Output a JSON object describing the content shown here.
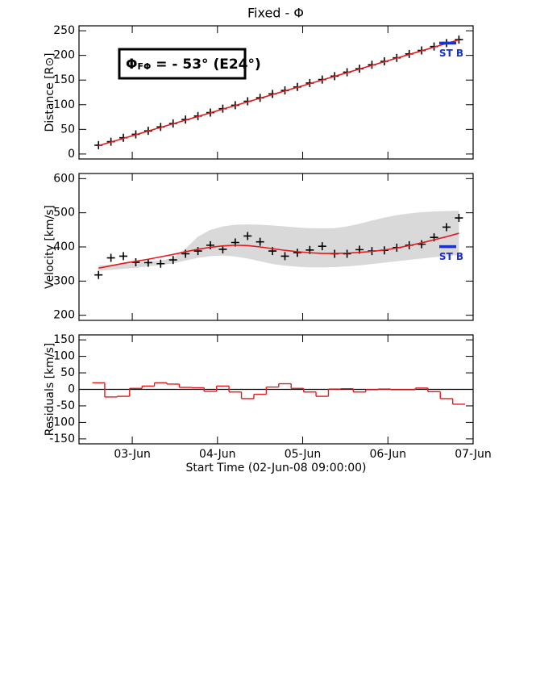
{
  "chart_data": [
    {
      "type": "scatter",
      "title": "Fixed - Φ",
      "ylabel": "Distance [R⊙]",
      "annotation": {
        "symbol": "Φ",
        "subscript": "FΦ",
        "text": " = - 53° (E24°)"
      },
      "x": [
        5.5,
        9,
        12.5,
        16,
        19.5,
        23,
        26.5,
        30,
        33.5,
        37,
        40.5,
        44,
        47.5,
        51,
        54.5,
        58,
        61.5,
        65,
        68.5,
        72,
        75.5,
        79,
        82.5,
        86,
        89.5,
        93,
        96.5,
        100,
        103.5,
        107
      ],
      "xlim": [
        0,
        111
      ],
      "xticks": [
        {
          "value": 15,
          "label": "03-Jun"
        },
        {
          "value": 39,
          "label": "04-Jun"
        },
        {
          "value": 63,
          "label": "05-Jun"
        },
        {
          "value": 87,
          "label": "06-Jun"
        },
        {
          "value": 111,
          "label": "07-Jun"
        }
      ],
      "ylim": [
        -10,
        260
      ],
      "yticks": [
        0,
        50,
        100,
        150,
        200,
        250
      ],
      "series": [
        {
          "kind": "band",
          "color": "#d9d9d9",
          "upper": [],
          "lower": []
        },
        {
          "kind": "points",
          "color": "#000000",
          "values": [
            18,
            25,
            33,
            40,
            47,
            55,
            62,
            70,
            77,
            84,
            92,
            99,
            107,
            114,
            122,
            129,
            136,
            144,
            151,
            158,
            166,
            173,
            181,
            188,
            195,
            203,
            210,
            218,
            225,
            232
          ]
        },
        {
          "kind": "line",
          "color": "#e41a1c",
          "values": [
            17,
            24.4,
            31.8,
            39.2,
            46.6,
            54,
            61.4,
            68.8,
            76.2,
            83.6,
            91,
            98.4,
            105.8,
            113.2,
            120.6,
            128,
            135.4,
            142.8,
            150.2,
            157.6,
            165,
            172.4,
            179.8,
            187.2,
            194.6,
            202,
            209.4,
            216.8,
            224.2,
            231.6
          ]
        }
      ],
      "marker": {
        "label": "ST B",
        "value": 225,
        "color": "#1a2fd0"
      }
    },
    {
      "type": "scatter",
      "ylabel": "Velocity [km/s]",
      "x": [
        5.5,
        9,
        12.5,
        16,
        19.5,
        23,
        26.5,
        30,
        33.5,
        37,
        40.5,
        44,
        47.5,
        51,
        54.5,
        58,
        61.5,
        65,
        68.5,
        72,
        75.5,
        79,
        82.5,
        86,
        89.5,
        93,
        96.5,
        100,
        103.5,
        107
      ],
      "xlim": [
        0,
        111
      ],
      "xticks": [
        {
          "value": 15,
          "label": "03-Jun"
        },
        {
          "value": 39,
          "label": "04-Jun"
        },
        {
          "value": 63,
          "label": "05-Jun"
        },
        {
          "value": 87,
          "label": "06-Jun"
        },
        {
          "value": 111,
          "label": "07-Jun"
        }
      ],
      "ylim": [
        185,
        615
      ],
      "yticks": [
        200,
        300,
        400,
        500,
        600
      ],
      "series": [
        {
          "kind": "band",
          "color": "#d9d9d9",
          "upper": [
            345,
            348,
            351,
            354,
            357,
            360,
            368,
            395,
            430,
            450,
            460,
            465,
            466,
            465,
            463,
            460,
            457,
            455,
            454,
            455,
            460,
            468,
            477,
            486,
            493,
            498,
            502,
            504,
            505,
            506
          ],
          "lower": [
            330,
            333,
            336,
            339,
            343,
            347,
            352,
            360,
            368,
            373,
            375,
            372,
            366,
            358,
            350,
            345,
            342,
            340,
            340,
            341,
            343,
            346,
            350,
            354,
            358,
            362,
            366,
            370,
            373,
            376
          ]
        },
        {
          "kind": "points",
          "color": "#000000",
          "values": [
            318,
            368,
            373,
            355,
            354,
            351,
            362,
            380,
            388,
            405,
            393,
            413,
            432,
            415,
            388,
            373,
            383,
            391,
            402,
            380,
            380,
            392,
            388,
            390,
            398,
            405,
            408,
            428,
            458,
            485
          ]
        },
        {
          "kind": "line",
          "color": "#e41a1c",
          "values": [
            338,
            345,
            352,
            358,
            364,
            371,
            378,
            386,
            393,
            399,
            403,
            405,
            404,
            400,
            395,
            390,
            386,
            383,
            381,
            381,
            382,
            384,
            387,
            391,
            397,
            404,
            412,
            421,
            430,
            440
          ]
        }
      ],
      "marker": {
        "label": "ST B",
        "value": 401,
        "color": "#1a2fd0"
      }
    },
    {
      "type": "step",
      "ylabel": "Residuals [km/s]",
      "xlabel": "Start Time (02-Jun-08 09:00:00)",
      "x": [
        5.5,
        9,
        12.5,
        16,
        19.5,
        23,
        26.5,
        30,
        33.5,
        37,
        40.5,
        44,
        47.5,
        51,
        54.5,
        58,
        61.5,
        65,
        68.5,
        72,
        75.5,
        79,
        82.5,
        86,
        89.5,
        93,
        96.5,
        100,
        103.5,
        107
      ],
      "xlim": [
        0,
        111
      ],
      "xticks": [
        {
          "value": 15,
          "label": "03-Jun"
        },
        {
          "value": 39,
          "label": "04-Jun"
        },
        {
          "value": 63,
          "label": "05-Jun"
        },
        {
          "value": 87,
          "label": "06-Jun"
        },
        {
          "value": 111,
          "label": "07-Jun"
        }
      ],
      "ylim": [
        -165,
        165
      ],
      "yticks": [
        -150,
        -100,
        -50,
        0,
        50,
        100,
        150
      ],
      "series": [
        {
          "kind": "step",
          "color": "#e41a1c",
          "values": [
            20,
            -23,
            -21,
            3,
            10,
            20,
            16,
            6,
            5,
            -6,
            10,
            -8,
            -28,
            -15,
            7,
            17,
            3,
            -8,
            -21,
            1,
            2,
            -8,
            -1,
            1,
            -1,
            -1,
            4,
            -7,
            -28,
            -45
          ]
        }
      ]
    }
  ]
}
